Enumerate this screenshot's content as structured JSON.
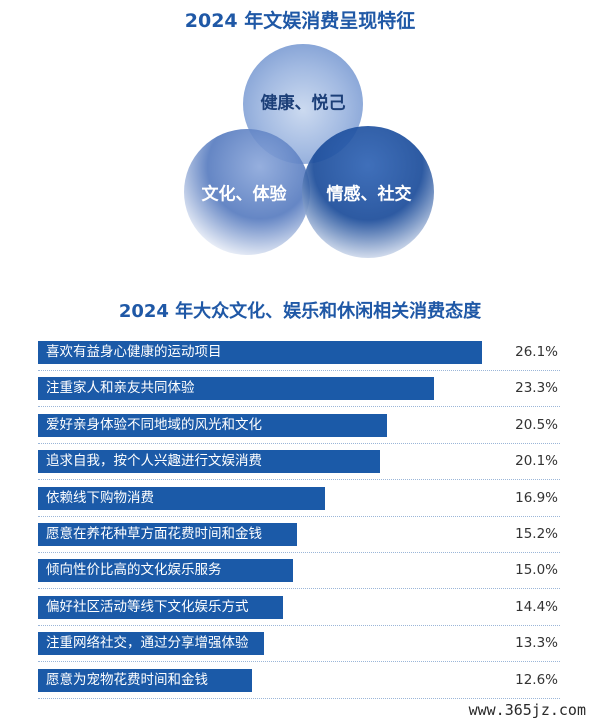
{
  "venn": {
    "title": "2024 年文娱消费呈现特征",
    "circles": [
      {
        "label": "健康、悦己"
      },
      {
        "label": "文化、体验"
      },
      {
        "label": "情感、社交"
      }
    ],
    "colors": {
      "light": "#dfe8f6",
      "mid": "#5b82c4",
      "dark": "#1b4c9a"
    }
  },
  "chart_data": {
    "type": "bar",
    "title": "2024 年大众文化、娱乐和休闲相关消费态度",
    "orientation": "horizontal",
    "categories": [
      "喜欢有益身心健康的运动项目",
      "注重家人和亲友共同体验",
      "爱好亲身体验不同地域的风光和文化",
      "追求自我，按个人兴趣进行文娱消费",
      "依赖线下购物消费",
      "愿意在养花种草方面花费时间和金钱",
      "倾向性价比高的文化娱乐服务",
      "偏好社区活动等线下文化娱乐方式",
      "注重网络社交，通过分享增强体验",
      "愿意为宠物花费时间和金钱"
    ],
    "values": [
      26.1,
      23.3,
      20.5,
      20.1,
      16.9,
      15.2,
      15.0,
      14.4,
      13.3,
      12.6
    ],
    "value_labels": [
      "26.1%",
      "23.3%",
      "20.5%",
      "20.1%",
      "16.9%",
      "15.2%",
      "15.0%",
      "14.4%",
      "13.3%",
      "12.6%"
    ],
    "bar_color": "#1b5aa8",
    "grid": false,
    "legend": "none"
  },
  "watermark": "www.365jz.com"
}
